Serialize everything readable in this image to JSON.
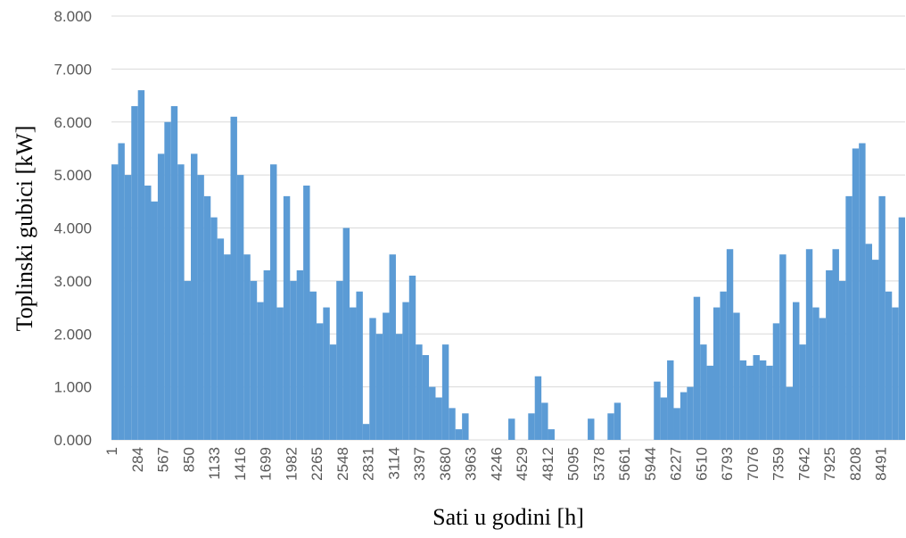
{
  "chart_data": {
    "type": "bar",
    "x_label": "Sati u godini [h]",
    "y_label": "Toplinski gubici [kW]",
    "color": "#5b9bd5",
    "grid": true,
    "xlim": [
      1,
      8760
    ],
    "ylim": [
      0,
      8
    ],
    "yticks": [
      {
        "value": 0,
        "label": "0.000"
      },
      {
        "value": 1,
        "label": "1.000"
      },
      {
        "value": 2,
        "label": "2.000"
      },
      {
        "value": 3,
        "label": "3.000"
      },
      {
        "value": 4,
        "label": "4.000"
      },
      {
        "value": 5,
        "label": "5.000"
      },
      {
        "value": 6,
        "label": "6.000"
      },
      {
        "value": 7,
        "label": "7.000"
      },
      {
        "value": 8,
        "label": "8.000"
      }
    ],
    "xticks": [
      1,
      284,
      567,
      850,
      1133,
      1416,
      1699,
      1982,
      2265,
      2548,
      2831,
      3114,
      3397,
      3680,
      3963,
      4246,
      4529,
      4812,
      5095,
      5378,
      5661,
      5944,
      6227,
      6510,
      6793,
      7076,
      7359,
      7642,
      7925,
      8208,
      8491
    ],
    "x": [
      1,
      74,
      147,
      220,
      293,
      366,
      439,
      512,
      585,
      658,
      731,
      804,
      877,
      950,
      1023,
      1096,
      1169,
      1242,
      1315,
      1388,
      1461,
      1534,
      1607,
      1680,
      1753,
      1826,
      1899,
      1972,
      2045,
      2118,
      2191,
      2264,
      2337,
      2410,
      2483,
      2556,
      2629,
      2702,
      2775,
      2848,
      2921,
      2994,
      3067,
      3140,
      3213,
      3286,
      3359,
      3432,
      3505,
      3578,
      3651,
      3724,
      3797,
      3870,
      3943,
      4016,
      4089,
      4162,
      4235,
      4308,
      4381,
      4454,
      4527,
      4600,
      4673,
      4746,
      4819,
      4892,
      4965,
      5038,
      5111,
      5184,
      5257,
      5330,
      5403,
      5476,
      5549,
      5622,
      5695,
      5768,
      5841,
      5914,
      5987,
      6060,
      6133,
      6206,
      6279,
      6352,
      6425,
      6498,
      6571,
      6644,
      6717,
      6790,
      6863,
      6936,
      7009,
      7082,
      7155,
      7228,
      7301,
      7374,
      7447,
      7520,
      7593,
      7666,
      7739,
      7812,
      7885,
      7958,
      8031,
      8104,
      8177,
      8250,
      8323,
      8396,
      8469,
      8542,
      8615,
      8688
    ],
    "values": [
      5.2,
      5.6,
      5.0,
      6.3,
      6.6,
      4.8,
      4.5,
      5.4,
      6.0,
      6.3,
      5.2,
      3.0,
      5.4,
      5.0,
      4.6,
      4.2,
      3.8,
      3.5,
      6.1,
      5.0,
      3.5,
      3.0,
      2.6,
      3.2,
      5.2,
      2.5,
      4.6,
      3.0,
      3.2,
      4.8,
      2.8,
      2.2,
      2.5,
      1.8,
      3.0,
      4.0,
      2.5,
      2.8,
      0.3,
      2.3,
      2.0,
      2.4,
      3.5,
      2.0,
      2.6,
      3.1,
      1.8,
      1.6,
      1.0,
      0.8,
      1.8,
      0.6,
      0.2,
      0.5,
      0,
      0,
      0,
      0,
      0,
      0,
      0.4,
      0,
      0,
      0.5,
      1.2,
      0.7,
      0.2,
      0,
      0,
      0,
      0,
      0,
      0.4,
      0,
      0,
      0.5,
      0.7,
      0,
      0,
      0,
      0,
      0,
      1.1,
      0.8,
      1.5,
      0.6,
      0.9,
      1.0,
      2.7,
      1.8,
      1.4,
      2.5,
      2.8,
      3.6,
      2.4,
      1.5,
      1.4,
      1.6,
      1.5,
      1.4,
      2.2,
      3.5,
      1.0,
      2.6,
      1.8,
      3.6,
      2.5,
      2.3,
      3.2,
      3.6,
      3.0,
      4.6,
      5.5,
      5.6,
      3.7,
      3.4,
      4.6,
      2.8,
      2.5,
      4.2
    ]
  }
}
